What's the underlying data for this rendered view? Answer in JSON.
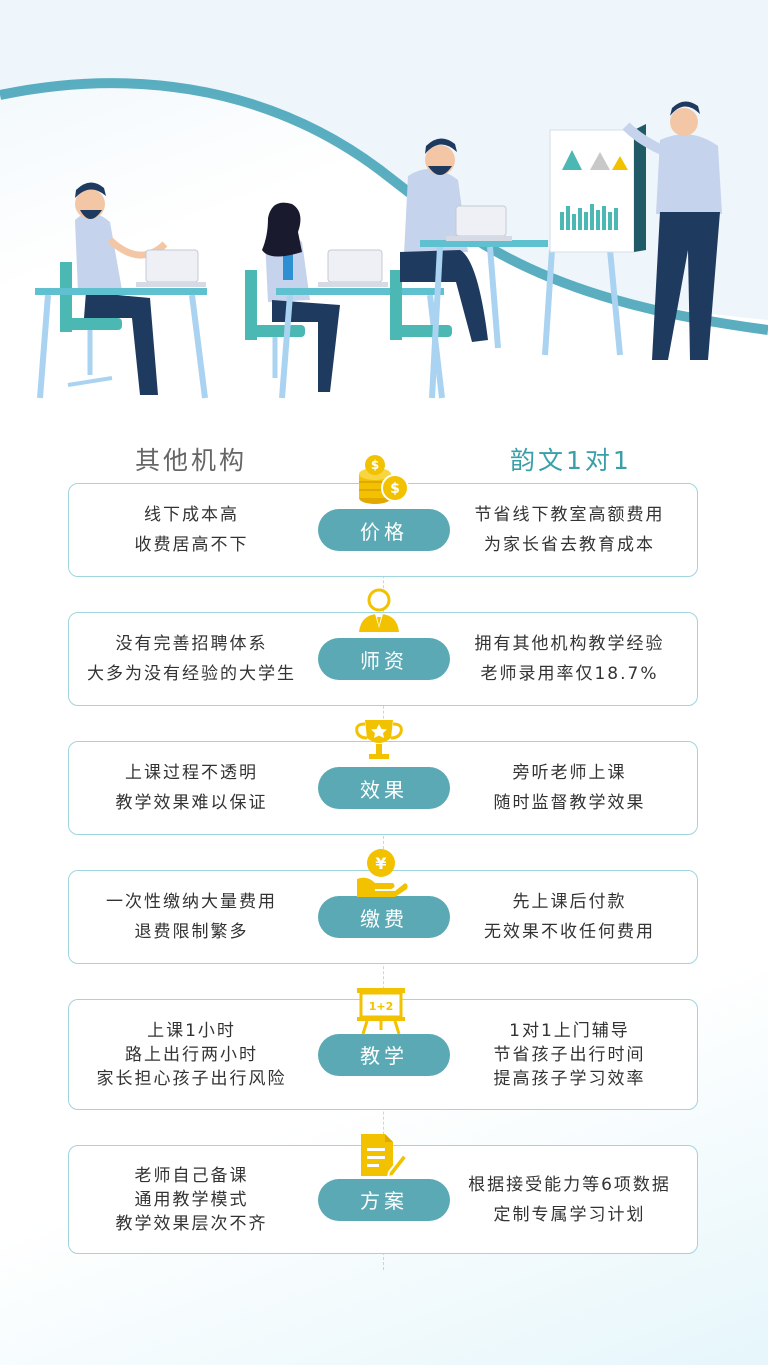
{
  "header": {
    "left": "其他机构",
    "right": "韵文1对1"
  },
  "colors": {
    "accent": "#5aa9b4",
    "icon": "#f2c200",
    "border": "#9fd5dc"
  },
  "rows": [
    {
      "label": "价格",
      "icon": "coins-icon",
      "left": [
        "线下成本高",
        "收费居高不下"
      ],
      "right": [
        "节省线下教室高额费用",
        "为家长省去教育成本"
      ]
    },
    {
      "label": "师资",
      "icon": "teacher-icon",
      "left": [
        "没有完善招聘体系",
        "大多为没有经验的大学生"
      ],
      "right": [
        "拥有其他机构教学经验",
        "老师录用率仅18.7%"
      ]
    },
    {
      "label": "效果",
      "icon": "trophy-icon",
      "left": [
        "上课过程不透明",
        "教学效果难以保证"
      ],
      "right": [
        "旁听老师上课",
        "随时监督教学效果"
      ]
    },
    {
      "label": "缴费",
      "icon": "yen-hand-icon",
      "left": [
        "一次性缴纳大量费用",
        "退费限制繁多"
      ],
      "right": [
        "先上课后付款",
        "无效果不收任何费用"
      ]
    },
    {
      "label": "教学",
      "icon": "blackboard-icon",
      "board_text": "1+2",
      "left": [
        "上课1小时",
        "路上出行两小时",
        "家长担心孩子出行风险"
      ],
      "right": [
        "1对1上门辅导",
        "节省孩子出行时间",
        "提高孩子学习效率"
      ]
    },
    {
      "label": "方案",
      "icon": "document-pen-icon",
      "left": [
        "老师自己备课",
        "通用教学模式",
        "教学效果层次不齐"
      ],
      "right": [
        "根据接受能力等6项数据",
        "定制专属学习计划"
      ]
    }
  ]
}
